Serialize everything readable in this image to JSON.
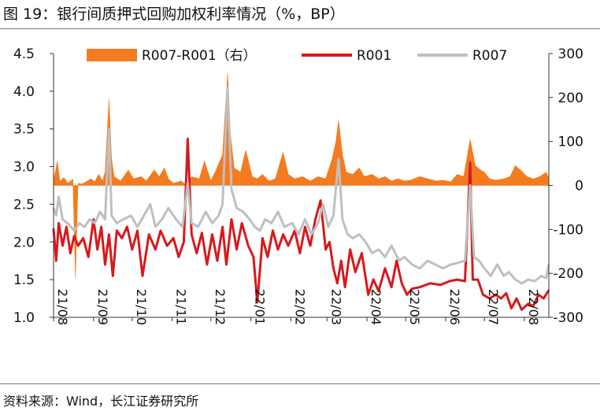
{
  "figure": {
    "title": "图 19：银行间质押式回购加权利率情况（%，BP）",
    "source": "资料来源：Wind，长江证券研究所"
  },
  "chart_data": {
    "type": "line",
    "title": "图 19：银行间质押式回购加权利率情况（%，BP）",
    "xlabel": "",
    "ylabel": "",
    "x_ticks": [
      "21/08",
      "21/09",
      "21/10",
      "21/11",
      "21/12",
      "22/01",
      "22/02",
      "22/03",
      "22/04",
      "22/05",
      "22/06",
      "22/07",
      "22/08"
    ],
    "x_range": [
      "2021-08-01",
      "2022-08-20"
    ],
    "ylim_left": [
      1.0,
      4.5
    ],
    "y_ticks_left": [
      "1.0",
      "1.5",
      "2.0",
      "2.5",
      "3.0",
      "3.5",
      "4.0",
      "4.5"
    ],
    "ylim_right": [
      -300,
      300
    ],
    "y_ticks_right": [
      "-300",
      "-200",
      "-100",
      "0",
      "100",
      "200",
      "300"
    ],
    "grid": false,
    "legend_position": "top",
    "series": [
      {
        "name": "R007-R001（右）",
        "kind": "area",
        "axis": "right",
        "color": "#f47b20",
        "points": [
          [
            "2021-08-01",
            10
          ],
          [
            "2021-08-04",
            55
          ],
          [
            "2021-08-06",
            8
          ],
          [
            "2021-08-09",
            18
          ],
          [
            "2021-08-12",
            5
          ],
          [
            "2021-08-16",
            14
          ],
          [
            "2021-08-18",
            -210
          ],
          [
            "2021-08-20",
            5
          ],
          [
            "2021-08-23",
            3
          ],
          [
            "2021-08-26",
            8
          ],
          [
            "2021-08-30",
            15
          ],
          [
            "2021-09-02",
            8
          ],
          [
            "2021-09-05",
            25
          ],
          [
            "2021-09-08",
            10
          ],
          [
            "2021-09-10",
            30
          ],
          [
            "2021-09-13",
            195
          ],
          [
            "2021-09-15",
            60
          ],
          [
            "2021-09-17",
            20
          ],
          [
            "2021-09-22",
            10
          ],
          [
            "2021-09-28",
            35
          ],
          [
            "2021-10-02",
            15
          ],
          [
            "2021-10-08",
            20
          ],
          [
            "2021-10-12",
            10
          ],
          [
            "2021-10-18",
            35
          ],
          [
            "2021-10-22",
            20
          ],
          [
            "2021-10-26",
            40
          ],
          [
            "2021-10-29",
            15
          ],
          [
            "2021-11-02",
            5
          ],
          [
            "2021-11-08",
            10
          ],
          [
            "2021-11-12",
            0
          ],
          [
            "2021-11-16",
            20
          ],
          [
            "2021-11-22",
            15
          ],
          [
            "2021-11-26",
            55
          ],
          [
            "2021-12-01",
            10
          ],
          [
            "2021-12-05",
            35
          ],
          [
            "2021-12-10",
            70
          ],
          [
            "2021-12-14",
            255
          ],
          [
            "2021-12-16",
            120
          ],
          [
            "2021-12-19",
            40
          ],
          [
            "2021-12-24",
            30
          ],
          [
            "2021-12-28",
            80
          ],
          [
            "2022-01-02",
            20
          ],
          [
            "2022-01-06",
            15
          ],
          [
            "2022-01-10",
            25
          ],
          [
            "2022-01-15",
            10
          ],
          [
            "2022-01-20",
            15
          ],
          [
            "2022-01-26",
            75
          ],
          [
            "2022-01-30",
            25
          ],
          [
            "2022-02-04",
            15
          ],
          [
            "2022-02-10",
            20
          ],
          [
            "2022-02-16",
            10
          ],
          [
            "2022-02-22",
            20
          ],
          [
            "2022-02-28",
            15
          ],
          [
            "2022-03-05",
            60
          ],
          [
            "2022-03-08",
            100
          ],
          [
            "2022-03-10",
            148
          ],
          [
            "2022-03-13",
            70
          ],
          [
            "2022-03-16",
            30
          ],
          [
            "2022-03-21",
            25
          ],
          [
            "2022-03-26",
            40
          ],
          [
            "2022-03-30",
            20
          ],
          [
            "2022-04-05",
            25
          ],
          [
            "2022-04-10",
            15
          ],
          [
            "2022-04-15",
            20
          ],
          [
            "2022-04-20",
            10
          ],
          [
            "2022-04-25",
            15
          ],
          [
            "2022-04-30",
            10
          ],
          [
            "2022-05-05",
            12
          ],
          [
            "2022-05-12",
            20
          ],
          [
            "2022-05-18",
            15
          ],
          [
            "2022-05-25",
            10
          ],
          [
            "2022-05-30",
            12
          ],
          [
            "2022-06-05",
            8
          ],
          [
            "2022-06-10",
            25
          ],
          [
            "2022-06-15",
            20
          ],
          [
            "2022-06-20",
            105
          ],
          [
            "2022-06-24",
            45
          ],
          [
            "2022-06-28",
            35
          ],
          [
            "2022-07-01",
            30
          ],
          [
            "2022-07-05",
            15
          ],
          [
            "2022-07-10",
            12
          ],
          [
            "2022-07-16",
            15
          ],
          [
            "2022-07-21",
            20
          ],
          [
            "2022-07-25",
            45
          ],
          [
            "2022-07-29",
            35
          ],
          [
            "2022-08-03",
            20
          ],
          [
            "2022-08-08",
            15
          ],
          [
            "2022-08-13",
            20
          ],
          [
            "2022-08-18",
            30
          ],
          [
            "2022-08-20",
            15
          ]
        ]
      },
      {
        "name": "R001",
        "kind": "line",
        "axis": "left",
        "color": "#d7191c",
        "points": [
          [
            "2021-08-01",
            2.18
          ],
          [
            "2021-08-03",
            1.75
          ],
          [
            "2021-08-05",
            2.25
          ],
          [
            "2021-08-08",
            1.95
          ],
          [
            "2021-08-11",
            2.2
          ],
          [
            "2021-08-14",
            1.85
          ],
          [
            "2021-08-17",
            2.08
          ],
          [
            "2021-08-20",
            1.95
          ],
          [
            "2021-08-24",
            2.05
          ],
          [
            "2021-08-28",
            1.8
          ],
          [
            "2021-09-01",
            2.3
          ],
          [
            "2021-09-04",
            1.9
          ],
          [
            "2021-09-07",
            2.2
          ],
          [
            "2021-09-10",
            1.7
          ],
          [
            "2021-09-13",
            2.1
          ],
          [
            "2021-09-16",
            1.55
          ],
          [
            "2021-09-19",
            2.15
          ],
          [
            "2021-09-23",
            2.05
          ],
          [
            "2021-09-27",
            2.2
          ],
          [
            "2021-10-01",
            1.9
          ],
          [
            "2021-10-05",
            2.15
          ],
          [
            "2021-10-09",
            1.55
          ],
          [
            "2021-10-14",
            2.1
          ],
          [
            "2021-10-19",
            1.9
          ],
          [
            "2021-10-23",
            2.15
          ],
          [
            "2021-10-28",
            1.95
          ],
          [
            "2021-11-02",
            2.05
          ],
          [
            "2021-11-06",
            1.8
          ],
          [
            "2021-11-10",
            2.0
          ],
          [
            "2021-11-13",
            3.37
          ],
          [
            "2021-11-16",
            2.1
          ],
          [
            "2021-11-20",
            1.85
          ],
          [
            "2021-11-24",
            2.12
          ],
          [
            "2021-11-28",
            1.7
          ],
          [
            "2021-12-02",
            2.1
          ],
          [
            "2021-12-06",
            1.75
          ],
          [
            "2021-12-10",
            2.2
          ],
          [
            "2021-12-13",
            1.7
          ],
          [
            "2021-12-17",
            2.3
          ],
          [
            "2021-12-21",
            1.9
          ],
          [
            "2021-12-25",
            2.25
          ],
          [
            "2021-12-30",
            1.95
          ],
          [
            "2022-01-03",
            1.8
          ],
          [
            "2022-01-06",
            1.2
          ],
          [
            "2022-01-10",
            2.05
          ],
          [
            "2022-01-14",
            1.8
          ],
          [
            "2022-01-18",
            2.15
          ],
          [
            "2022-01-22",
            1.9
          ],
          [
            "2022-01-26",
            2.1
          ],
          [
            "2022-01-30",
            1.95
          ],
          [
            "2022-02-04",
            2.15
          ],
          [
            "2022-02-08",
            1.85
          ],
          [
            "2022-02-12",
            2.2
          ],
          [
            "2022-02-16",
            1.95
          ],
          [
            "2022-02-20",
            2.3
          ],
          [
            "2022-02-24",
            2.55
          ],
          [
            "2022-02-28",
            1.9
          ],
          [
            "2022-03-03",
            2.0
          ],
          [
            "2022-03-06",
            1.65
          ],
          [
            "2022-03-09",
            1.45
          ],
          [
            "2022-03-12",
            1.75
          ],
          [
            "2022-03-15",
            1.4
          ],
          [
            "2022-03-19",
            1.9
          ],
          [
            "2022-03-23",
            1.6
          ],
          [
            "2022-03-28",
            1.85
          ],
          [
            "2022-04-02",
            1.3
          ],
          [
            "2022-04-06",
            1.5
          ],
          [
            "2022-04-10",
            1.35
          ],
          [
            "2022-04-15",
            1.65
          ],
          [
            "2022-04-20",
            1.4
          ],
          [
            "2022-04-24",
            1.75
          ],
          [
            "2022-04-28",
            1.45
          ],
          [
            "2022-05-02",
            1.3
          ],
          [
            "2022-05-06",
            1.38
          ],
          [
            "2022-05-12",
            1.4
          ],
          [
            "2022-05-20",
            1.45
          ],
          [
            "2022-05-28",
            1.43
          ],
          [
            "2022-06-04",
            1.48
          ],
          [
            "2022-06-10",
            1.5
          ],
          [
            "2022-06-16",
            1.48
          ],
          [
            "2022-06-20",
            3.05
          ],
          [
            "2022-06-22",
            1.5
          ],
          [
            "2022-06-26",
            1.5
          ],
          [
            "2022-06-30",
            1.3
          ],
          [
            "2022-07-05",
            1.25
          ],
          [
            "2022-07-10",
            1.3
          ],
          [
            "2022-07-14",
            1.25
          ],
          [
            "2022-07-18",
            1.32
          ],
          [
            "2022-07-22",
            1.12
          ],
          [
            "2022-07-26",
            1.25
          ],
          [
            "2022-07-30",
            1.1
          ],
          [
            "2022-08-04",
            1.18
          ],
          [
            "2022-08-08",
            1.15
          ],
          [
            "2022-08-12",
            1.3
          ],
          [
            "2022-08-16",
            1.25
          ],
          [
            "2022-08-20",
            1.36
          ]
        ]
      },
      {
        "name": "R007",
        "kind": "line",
        "axis": "left",
        "color": "#bfbfbf",
        "points": [
          [
            "2021-08-01",
            2.45
          ],
          [
            "2021-08-03",
            2.35
          ],
          [
            "2021-08-05",
            2.6
          ],
          [
            "2021-08-08",
            2.3
          ],
          [
            "2021-08-12",
            2.25
          ],
          [
            "2021-08-17",
            2.15
          ],
          [
            "2021-08-21",
            2.25
          ],
          [
            "2021-08-25",
            2.2
          ],
          [
            "2021-08-29",
            2.3
          ],
          [
            "2021-09-02",
            2.25
          ],
          [
            "2021-09-06",
            2.4
          ],
          [
            "2021-09-10",
            2.3
          ],
          [
            "2021-09-13",
            3.5
          ],
          [
            "2021-09-15",
            2.35
          ],
          [
            "2021-09-19",
            2.25
          ],
          [
            "2021-09-24",
            2.3
          ],
          [
            "2021-09-30",
            2.35
          ],
          [
            "2021-10-05",
            2.2
          ],
          [
            "2021-10-10",
            2.35
          ],
          [
            "2021-10-15",
            2.5
          ],
          [
            "2021-10-19",
            2.2
          ],
          [
            "2021-10-24",
            2.3
          ],
          [
            "2021-10-29",
            2.45
          ],
          [
            "2021-11-04",
            2.3
          ],
          [
            "2021-11-09",
            2.2
          ],
          [
            "2021-11-13",
            2.78
          ],
          [
            "2021-11-16",
            2.25
          ],
          [
            "2021-11-21",
            2.2
          ],
          [
            "2021-11-27",
            2.4
          ],
          [
            "2021-12-02",
            2.25
          ],
          [
            "2021-12-07",
            2.35
          ],
          [
            "2021-12-10",
            2.5
          ],
          [
            "2021-12-14",
            4.05
          ],
          [
            "2021-12-17",
            2.7
          ],
          [
            "2021-12-21",
            2.45
          ],
          [
            "2021-12-26",
            2.4
          ],
          [
            "2021-12-31",
            2.3
          ],
          [
            "2022-01-04",
            2.2
          ],
          [
            "2022-01-08",
            2.15
          ],
          [
            "2022-01-12",
            2.3
          ],
          [
            "2022-01-17",
            2.25
          ],
          [
            "2022-01-22",
            2.4
          ],
          [
            "2022-01-27",
            2.2
          ],
          [
            "2022-02-02",
            2.25
          ],
          [
            "2022-02-07",
            2.1
          ],
          [
            "2022-02-12",
            2.3
          ],
          [
            "2022-02-17",
            2.1
          ],
          [
            "2022-02-22",
            2.25
          ],
          [
            "2022-02-26",
            2.5
          ],
          [
            "2022-03-02",
            2.2
          ],
          [
            "2022-03-06",
            2.35
          ],
          [
            "2022-03-10",
            3.1
          ],
          [
            "2022-03-13",
            2.3
          ],
          [
            "2022-03-17",
            2.1
          ],
          [
            "2022-03-21",
            2.05
          ],
          [
            "2022-03-26",
            2.1
          ],
          [
            "2022-03-31",
            2.0
          ],
          [
            "2022-04-05",
            1.85
          ],
          [
            "2022-04-10",
            1.9
          ],
          [
            "2022-04-15",
            1.8
          ],
          [
            "2022-04-20",
            1.95
          ],
          [
            "2022-04-26",
            1.75
          ],
          [
            "2022-04-30",
            1.8
          ],
          [
            "2022-05-06",
            1.7
          ],
          [
            "2022-05-12",
            1.65
          ],
          [
            "2022-05-18",
            1.75
          ],
          [
            "2022-05-24",
            1.7
          ],
          [
            "2022-05-30",
            1.65
          ],
          [
            "2022-06-05",
            1.7
          ],
          [
            "2022-06-10",
            1.72
          ],
          [
            "2022-06-16",
            1.75
          ],
          [
            "2022-06-20",
            2.75
          ],
          [
            "2022-06-23",
            1.8
          ],
          [
            "2022-06-27",
            1.75
          ],
          [
            "2022-07-01",
            1.65
          ],
          [
            "2022-07-06",
            1.55
          ],
          [
            "2022-07-11",
            1.7
          ],
          [
            "2022-07-16",
            1.55
          ],
          [
            "2022-07-20",
            1.6
          ],
          [
            "2022-07-25",
            1.5
          ],
          [
            "2022-07-30",
            1.45
          ],
          [
            "2022-08-04",
            1.5
          ],
          [
            "2022-08-09",
            1.48
          ],
          [
            "2022-08-14",
            1.55
          ],
          [
            "2022-08-18",
            1.52
          ],
          [
            "2022-08-20",
            1.7
          ]
        ]
      }
    ]
  }
}
